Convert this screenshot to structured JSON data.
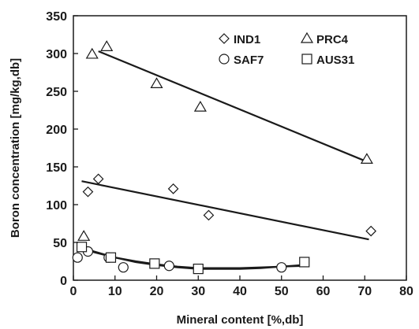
{
  "chart_data": {
    "type": "scatter",
    "title": "",
    "xlabel": "Mineral content [%,db]",
    "ylabel": "Boron concentration [mg/kg,db]",
    "xlim": [
      0,
      80
    ],
    "ylim": [
      0,
      350
    ],
    "x_ticks": [
      "0",
      "10",
      "20",
      "30",
      "40",
      "50",
      "60",
      "70",
      "80"
    ],
    "y_ticks": [
      "0",
      "50",
      "100",
      "150",
      "200",
      "250",
      "300",
      "350"
    ],
    "grid": false,
    "legend_position": "top-right",
    "series": [
      {
        "name": "IND1",
        "marker": "diamond",
        "points": [
          [
            3.5,
            117
          ],
          [
            6,
            134
          ],
          [
            24,
            121
          ],
          [
            32.5,
            86
          ],
          [
            71.5,
            65
          ]
        ],
        "trendline": [
          [
            2,
            131
          ],
          [
            71,
            54
          ]
        ]
      },
      {
        "name": "PRC4",
        "marker": "triangle",
        "points": [
          [
            2.5,
            58
          ],
          [
            4.5,
            299
          ],
          [
            8,
            309
          ],
          [
            20,
            260
          ],
          [
            30.5,
            229
          ],
          [
            70.5,
            160
          ]
        ],
        "trendline": [
          [
            6,
            303
          ],
          [
            70,
            158
          ]
        ]
      },
      {
        "name": "SAF7",
        "marker": "circle",
        "points": [
          [
            1,
            30
          ],
          [
            3.5,
            38
          ],
          [
            8.5,
            30
          ],
          [
            12,
            17
          ],
          [
            23,
            19
          ],
          [
            50,
            17
          ]
        ],
        "trendline": [
          [
            1,
            44
          ],
          [
            5,
            37
          ],
          [
            10,
            30
          ],
          [
            15,
            25
          ],
          [
            20,
            21
          ],
          [
            25,
            18
          ],
          [
            30,
            16
          ],
          [
            35,
            16
          ],
          [
            40,
            16
          ],
          [
            45,
            17
          ],
          [
            50,
            18
          ],
          [
            55,
            19
          ]
        ]
      },
      {
        "name": "AUS31",
        "marker": "square",
        "points": [
          [
            2,
            44
          ],
          [
            9,
            30
          ],
          [
            19.5,
            22
          ],
          [
            30,
            15
          ],
          [
            55.5,
            24
          ]
        ],
        "trendline": [
          [
            1,
            45
          ],
          [
            5,
            38
          ],
          [
            10,
            30
          ],
          [
            15,
            24
          ],
          [
            20,
            20
          ],
          [
            25,
            17
          ],
          [
            30,
            15
          ],
          [
            35,
            15
          ],
          [
            40,
            15
          ],
          [
            45,
            16
          ],
          [
            50,
            18
          ],
          [
            55,
            20
          ]
        ]
      }
    ]
  }
}
